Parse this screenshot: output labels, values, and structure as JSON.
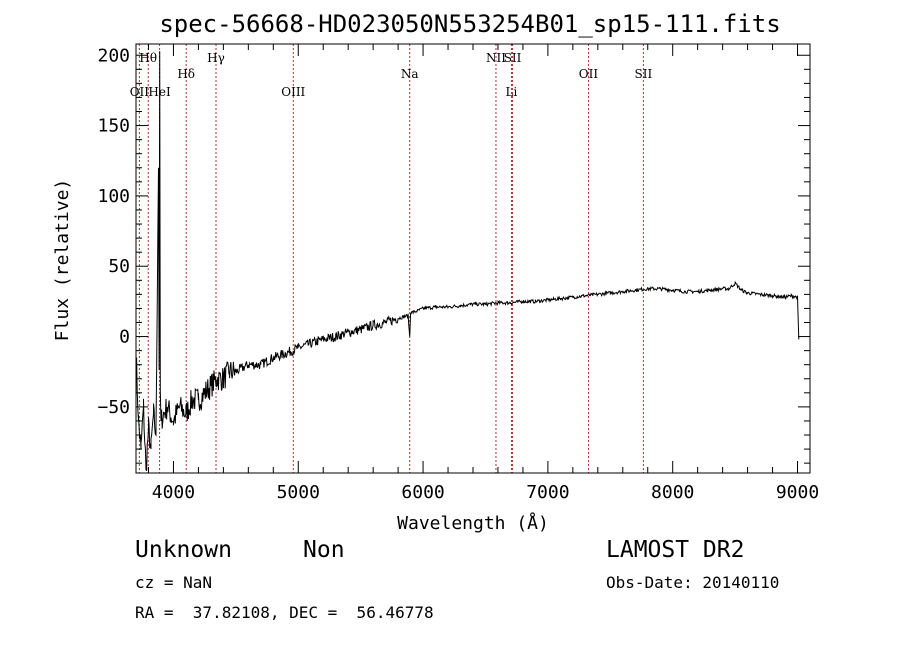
{
  "chart_data": {
    "type": "line",
    "title": "spec-56668-HD023050N553254B01_sp15-111.fits",
    "xlabel": "Wavelength (Å)",
    "ylabel": "Flux (relative)",
    "xlim": [
      3700,
      9100
    ],
    "ylim": [
      -97,
      208
    ],
    "x_ticks": [
      4000,
      5000,
      6000,
      7000,
      8000,
      9000
    ],
    "y_ticks": [
      -50,
      0,
      50,
      100,
      150,
      200
    ],
    "grid": false,
    "line_color": "#000000",
    "marker_color": "#b03030",
    "spectral_lines": [
      {
        "label": "Hθ",
        "wavelength": 3798,
        "row": 1
      },
      {
        "label": "OII",
        "wavelength": 3727,
        "row": 3
      },
      {
        "label": "HeI",
        "wavelength": 3889,
        "row": 3
      },
      {
        "label": "Hδ",
        "wavelength": 4102,
        "row": 2
      },
      {
        "label": "Hγ",
        "wavelength": 4341,
        "row": 1
      },
      {
        "label": "OIII",
        "wavelength": 4960,
        "row": 3
      },
      {
        "label": "Na",
        "wavelength": 5893,
        "row": 2
      },
      {
        "label": "NII",
        "wavelength": 6584,
        "row": 1
      },
      {
        "label": "SII",
        "wavelength": 6717,
        "row": 1
      },
      {
        "label": "Li",
        "wavelength": 6708,
        "row": 3
      },
      {
        "label": "OII",
        "wavelength": 7325,
        "row": 2
      },
      {
        "label": "SII",
        "wavelength": 7765,
        "row": 2
      }
    ],
    "series": [
      {
        "x": [
          3700,
          3720,
          3740,
          3760,
          3780,
          3800,
          3820,
          3840,
          3860,
          3880,
          3885,
          3890,
          3895,
          3900,
          3920,
          3950,
          4000,
          4050,
          4100,
          4150,
          4200,
          4250,
          4300,
          4350,
          4400,
          4450,
          4500,
          4600,
          4700,
          4800,
          4900,
          5000,
          5100,
          5200,
          5300,
          5400,
          5500,
          5600,
          5700,
          5800,
          5880,
          5893,
          5900,
          5950,
          6000,
          6100,
          6200,
          6300,
          6400,
          6500,
          6600,
          6700,
          6800,
          6900,
          7000,
          7100,
          7200,
          7300,
          7400,
          7500,
          7600,
          7700,
          7800,
          7900,
          8000,
          8100,
          8200,
          8300,
          8400,
          8450,
          8500,
          8550,
          8600,
          8700,
          8800,
          8900,
          8950,
          9000,
          9010
        ],
        "y": [
          -10,
          -60,
          -80,
          -50,
          -95,
          -65,
          -80,
          -55,
          -70,
          120,
          -20,
          195,
          -40,
          -60,
          -55,
          -50,
          -60,
          -50,
          -55,
          -45,
          -45,
          -40,
          -35,
          -30,
          -30,
          -25,
          -25,
          -20,
          -20,
          -15,
          -12,
          -8,
          -5,
          -2,
          0,
          3,
          5,
          8,
          10,
          13,
          15,
          0,
          17,
          18,
          20,
          21,
          21,
          22,
          23,
          23,
          24,
          24,
          25,
          25,
          26,
          27,
          28,
          29,
          30,
          31,
          32,
          33,
          34,
          34,
          33,
          32,
          32,
          33,
          34,
          34,
          38,
          33,
          31,
          30,
          29,
          28,
          29,
          28,
          -2
        ]
      }
    ]
  },
  "info": {
    "object_name": "Unknown",
    "object_class": "Non",
    "cz": "cz = NaN",
    "ra_dec": "RA =  37.82108, DEC =  56.46778",
    "survey": "LAMOST DR2",
    "obs_date": "Obs-Date: 20140110"
  }
}
